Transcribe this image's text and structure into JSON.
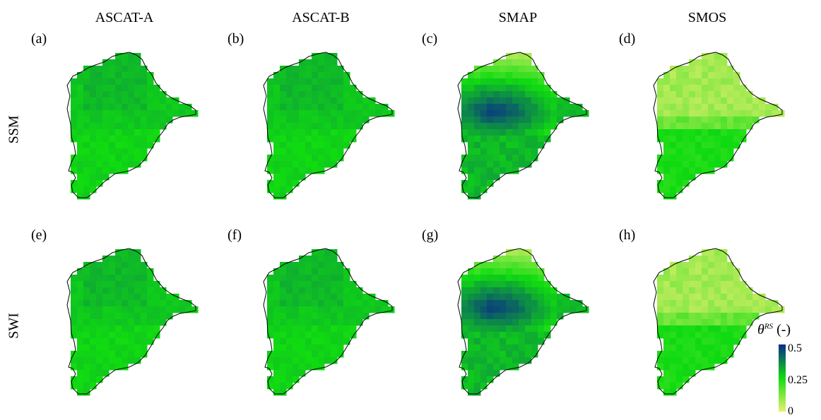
{
  "columns": [
    "ASCAT-A",
    "ASCAT-B",
    "SMAP",
    "SMOS"
  ],
  "rows": [
    "SSM",
    "SWI"
  ],
  "panel_labels": [
    "(a)",
    "(b)",
    "(c)",
    "(d)",
    "(e)",
    "(f)",
    "(g)",
    "(h)"
  ],
  "colorbar": {
    "title_symbol": "θ",
    "title_superscript": "RS",
    "title_unit": "(-)",
    "ticks": [
      "0.5",
      "0.25",
      "0"
    ],
    "tick_values": [
      0.5,
      0.25,
      0
    ],
    "min": 0,
    "max": 0.5,
    "colors": [
      "#e8f070",
      "#10dc10",
      "#0a2a8a"
    ]
  },
  "panel_fields": {
    "ascat": "uniform",
    "smap": "wet-center",
    "smos": "dry-north"
  }
}
